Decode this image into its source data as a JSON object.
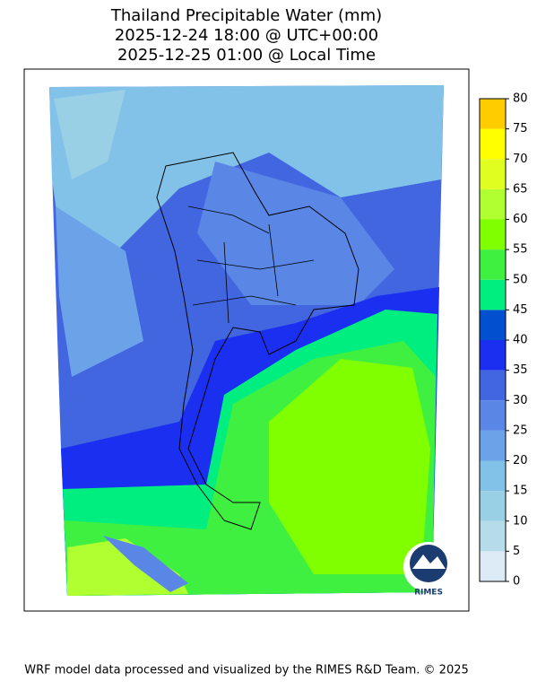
{
  "header": {
    "title_lines": [
      "Thailand Precipitable Water (mm)",
      "2025-12-24 18:00 @ UTC+00:00",
      "2025-12-25 01:00 @ Local Time"
    ]
  },
  "colorbar": {
    "ticks": [
      0,
      5,
      10,
      15,
      20,
      25,
      30,
      35,
      40,
      45,
      50,
      55,
      60,
      65,
      70,
      75,
      80
    ],
    "colors": [
      "#ddebf7",
      "#b5dce8",
      "#9ad0e6",
      "#82c2e8",
      "#6ca2e8",
      "#5a86e6",
      "#4266e0",
      "#1a2ff0",
      "#0050d0",
      "#00ee80",
      "#40f040",
      "#80ff00",
      "#b0ff30",
      "#e0ff20",
      "#ffff00",
      "#ffcc00"
    ]
  },
  "logo": {
    "text": "RIMES"
  },
  "footer": {
    "text": "WRF model data processed and visualized by the RIMES R&D Team. © 2025"
  }
}
